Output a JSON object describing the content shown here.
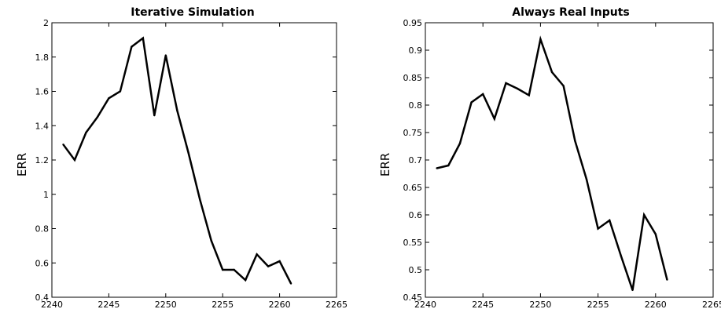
{
  "colors": {
    "background": "#ffffff",
    "line": "#000000",
    "axes": "#000000"
  },
  "chart_data": [
    {
      "type": "line",
      "title": "Iterative Simulation",
      "xlabel": "",
      "ylabel": "ERR",
      "xlim": [
        2240,
        2265
      ],
      "ylim": [
        0.4,
        2
      ],
      "xticks": [
        "2240",
        "2245",
        "2250",
        "2255",
        "2260",
        "2265"
      ],
      "yticks": [
        "0.4",
        "0.6",
        "0.8",
        "1",
        "1.2",
        "1.4",
        "1.6",
        "1.8",
        "2"
      ],
      "grid": false,
      "series": [
        {
          "x": [
            2241,
            2242,
            2243,
            2244,
            2245,
            2246,
            2247,
            2248,
            2249,
            2250,
            2251,
            2252,
            2253,
            2254,
            2255,
            2256,
            2257,
            2258,
            2259,
            2260,
            2261
          ],
          "values": [
            1.29,
            1.2,
            1.36,
            1.45,
            1.56,
            1.6,
            1.86,
            1.91,
            1.46,
            1.81,
            1.49,
            1.24,
            0.97,
            0.73,
            0.56,
            0.56,
            0.5,
            0.65,
            0.58,
            0.61,
            0.48
          ]
        }
      ]
    },
    {
      "type": "line",
      "title": "Always Real Inputs",
      "xlabel": "",
      "ylabel": "ERR",
      "xlim": [
        2240,
        2265
      ],
      "ylim": [
        0.45,
        0.95
      ],
      "xticks": [
        "2240",
        "2245",
        "2250",
        "2255",
        "2260",
        "2265"
      ],
      "yticks": [
        "0.45",
        "0.5",
        "0.55",
        "0.6",
        "0.65",
        "0.7",
        "0.75",
        "0.8",
        "0.85",
        "0.9",
        "0.95"
      ],
      "grid": false,
      "series": [
        {
          "x": [
            2241,
            2242,
            2243,
            2244,
            2245,
            2246,
            2247,
            2248,
            2249,
            2250,
            2251,
            2252,
            2253,
            2254,
            2255,
            2256,
            2257,
            2258,
            2259,
            2260,
            2261
          ],
          "values": [
            0.685,
            0.69,
            0.73,
            0.805,
            0.82,
            0.775,
            0.84,
            0.83,
            0.818,
            0.92,
            0.86,
            0.835,
            0.735,
            0.665,
            0.575,
            0.59,
            0.525,
            0.463,
            0.6,
            0.565,
            0.482
          ]
        }
      ]
    }
  ]
}
